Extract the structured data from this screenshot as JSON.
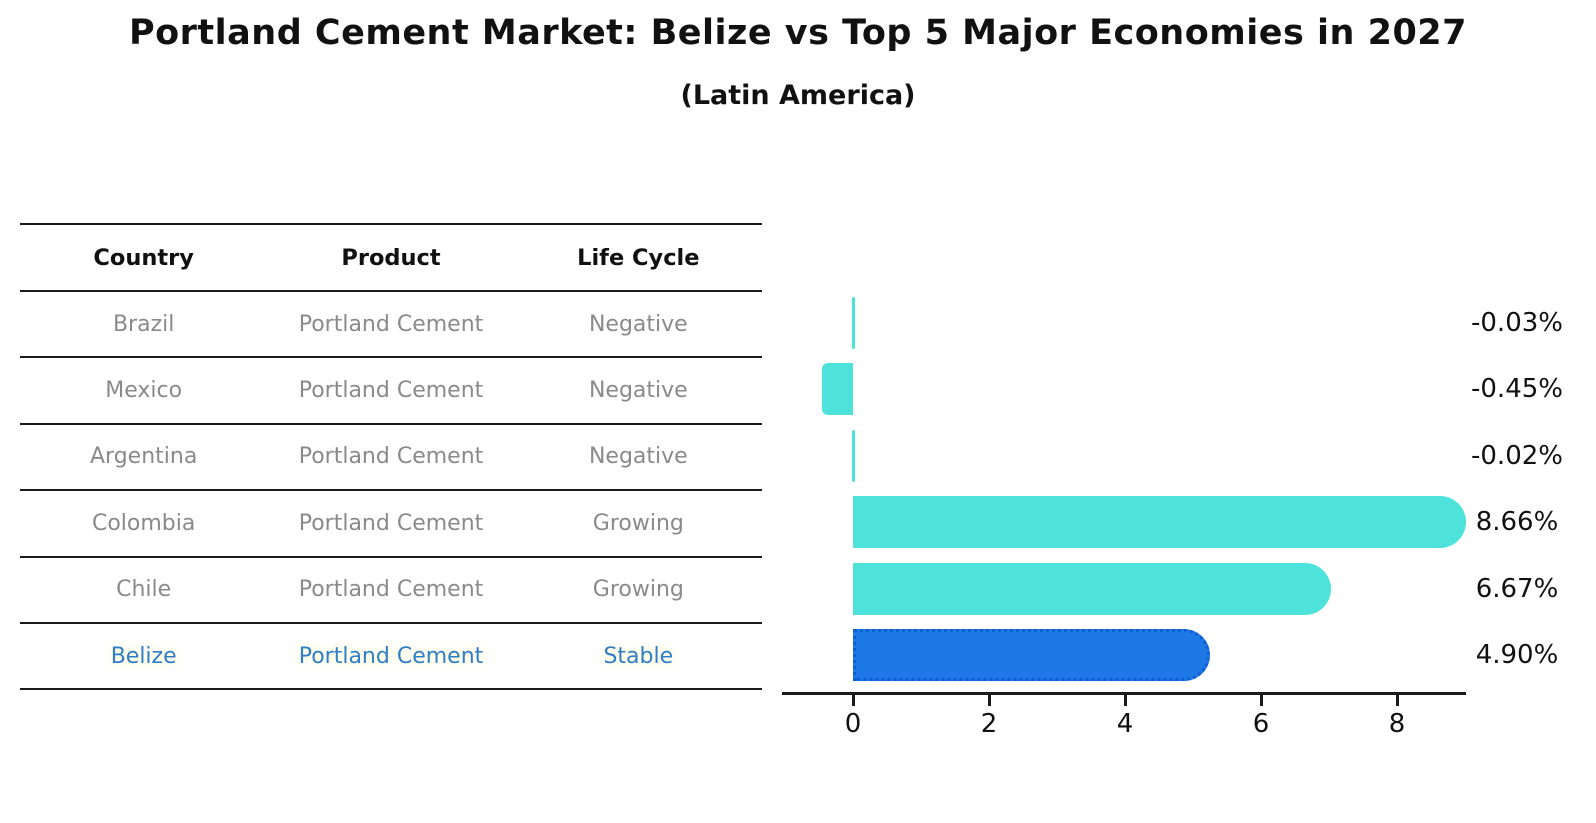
{
  "title": "Portland Cement Market: Belize vs Top 5 Major Economies in 2027",
  "subtitle": "(Latin America)",
  "table": {
    "headers": [
      "Country",
      "Product",
      "Life Cycle"
    ],
    "highlight_color": "#2e7ec8",
    "rows": [
      {
        "country": "Brazil",
        "product": "Portland Cement",
        "life_cycle": "Negative"
      },
      {
        "country": "Mexico",
        "product": "Portland Cement",
        "life_cycle": "Negative"
      },
      {
        "country": "Argentina",
        "product": "Portland Cement",
        "life_cycle": "Negative"
      },
      {
        "country": "Colombia",
        "product": "Portland Cement",
        "life_cycle": "Growing"
      },
      {
        "country": "Chile",
        "product": "Portland Cement",
        "life_cycle": "Growing"
      },
      {
        "country": "Belize",
        "product": "Portland Cement",
        "life_cycle": "Stable"
      }
    ]
  },
  "chart_data": {
    "type": "bar",
    "orientation": "horizontal",
    "title": "Portland Cement Market: Belize vs Top 5 Major Economies in 2027",
    "subtitle": "(Latin America)",
    "categories": [
      "Brazil",
      "Mexico",
      "Argentina",
      "Colombia",
      "Chile",
      "Belize"
    ],
    "values": [
      -0.03,
      -0.45,
      -0.02,
      8.66,
      6.67,
      4.9
    ],
    "value_labels": [
      "-0.03%",
      "-0.45%",
      "-0.02%",
      "8.66%",
      "6.67%",
      "4.90%"
    ],
    "xticks": [
      "0",
      "2",
      "4",
      "6",
      "8"
    ],
    "xtick_values": [
      0,
      2,
      4,
      6,
      8
    ],
    "xlim": [
      -1.05,
      9.05
    ],
    "grid": false,
    "highlight_index": 5,
    "colors": {
      "bar_default": "#4de3da",
      "bar_highlight": "#1e78e6",
      "bar_highlight_border": "#0d5ed2",
      "axis": "#1a1a1a",
      "value_label_text": "#111111",
      "table_text": "#8a8a8a"
    }
  }
}
